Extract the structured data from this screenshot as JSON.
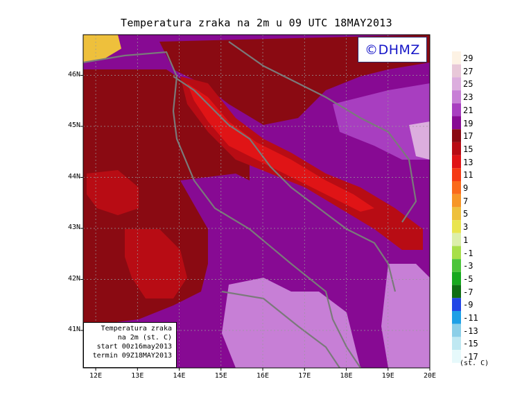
{
  "title": "Temperatura zraka na 2m u 09 UTC 18MAY2013",
  "logo": "©DHMZ",
  "info_lines": [
    "Temperatura zraka",
    "na 2m (st. C)",
    "start 00z16may2013",
    "termin 09Z18MAY2013"
  ],
  "units": "(st. C)",
  "lat_ticks": [
    "46N",
    "45N",
    "44N",
    "43N",
    "42N",
    "41N"
  ],
  "lon_ticks": [
    "12E",
    "13E",
    "14E",
    "15E",
    "16E",
    "17E",
    "18E",
    "19E",
    "20E"
  ],
  "colorbar": {
    "labels": [
      "29",
      "27",
      "25",
      "23",
      "21",
      "19",
      "17",
      "15",
      "13",
      "11",
      "9",
      "7",
      "5",
      "3",
      "1",
      "-1",
      "-3",
      "-5",
      "-7",
      "-9",
      "-11",
      "-13",
      "-15",
      "-17"
    ],
    "colors": [
      "#fdf2e4",
      "#e8c8d8",
      "#dcaede",
      "#c77fd6",
      "#a83ec0",
      "#870a93",
      "#8a0a12",
      "#b80c14",
      "#e01416",
      "#f53a14",
      "#fa6a1a",
      "#f79626",
      "#eec03c",
      "#e9e54e",
      "#dcefaa",
      "#a8df4a",
      "#4cc43a",
      "#17a91e",
      "#0f6e14",
      "#2246e6",
      "#1ea0e6",
      "#8ccfe8",
      "#bfe8f2",
      "#e6f9fb"
    ]
  },
  "map_colors": {
    "hottest": "#eec03c",
    "t25": "#dcaede",
    "t23": "#c77fd6",
    "t21": "#a83ec0",
    "t19": "#870a93",
    "t17": "#8a0a12",
    "t15": "#b80c14",
    "t13": "#e01416",
    "t11": "#f53a14",
    "coast": "#7a7a7a"
  }
}
